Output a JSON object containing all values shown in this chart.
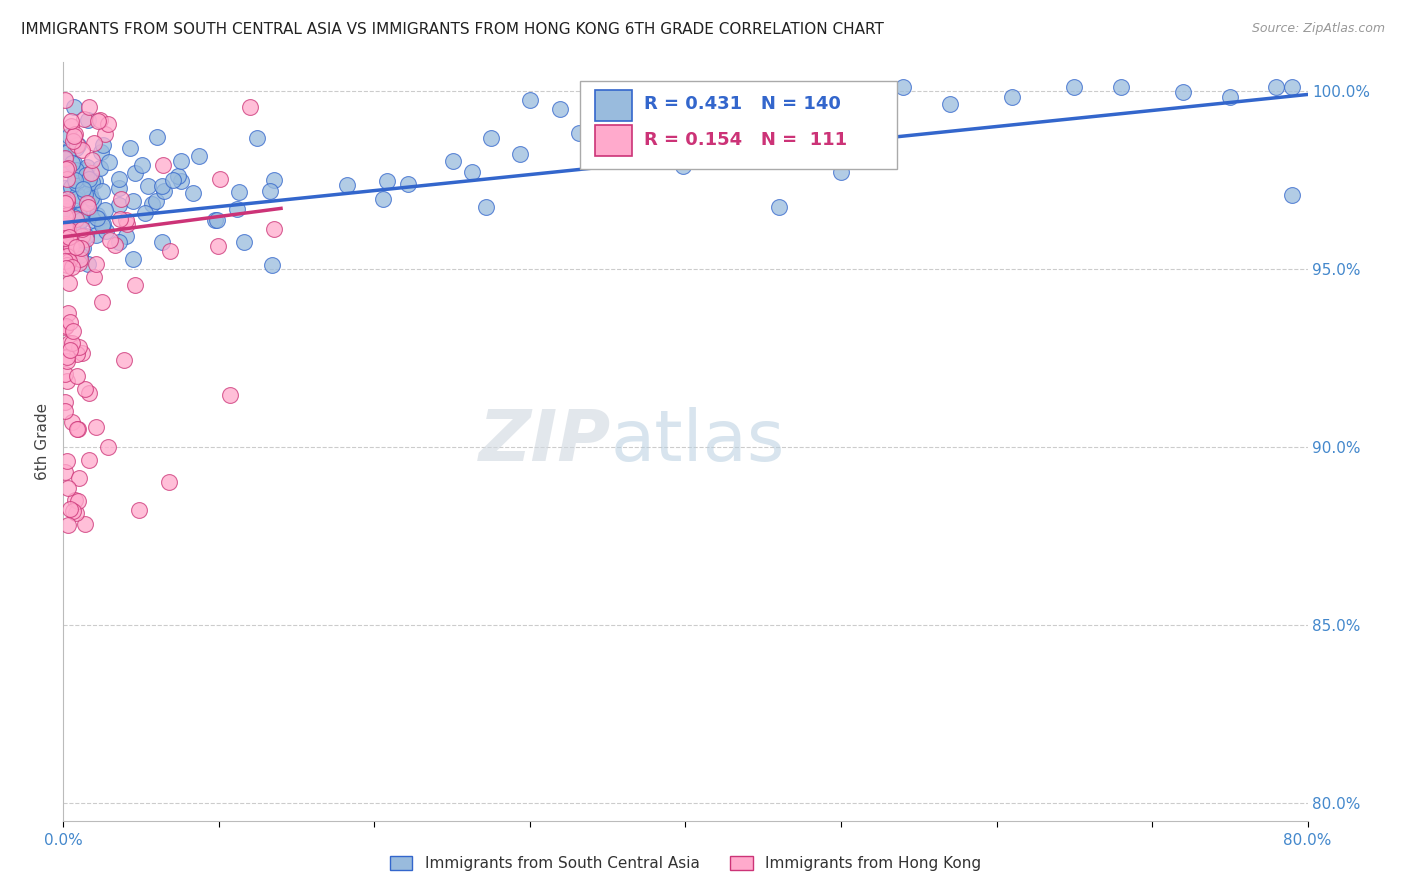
{
  "title": "IMMIGRANTS FROM SOUTH CENTRAL ASIA VS IMMIGRANTS FROM HONG KONG 6TH GRADE CORRELATION CHART",
  "source": "Source: ZipAtlas.com",
  "ylabel": "6th Grade",
  "xlim": [
    0.0,
    0.8
  ],
  "ylim": [
    0.795,
    1.008
  ],
  "yticks": [
    0.8,
    0.85,
    0.9,
    0.95,
    1.0
  ],
  "yticklabels": [
    "80.0%",
    "85.0%",
    "90.0%",
    "95.0%",
    "100.0%"
  ],
  "blue_color": "#99BBDD",
  "pink_color": "#FFAACC",
  "trend_blue": "#3366CC",
  "trend_pink": "#CC3377",
  "axis_color": "#4488CC",
  "title_fontsize": 11,
  "blue_N": 140,
  "pink_N": 111,
  "blue_R": 0.431,
  "pink_R": 0.154
}
